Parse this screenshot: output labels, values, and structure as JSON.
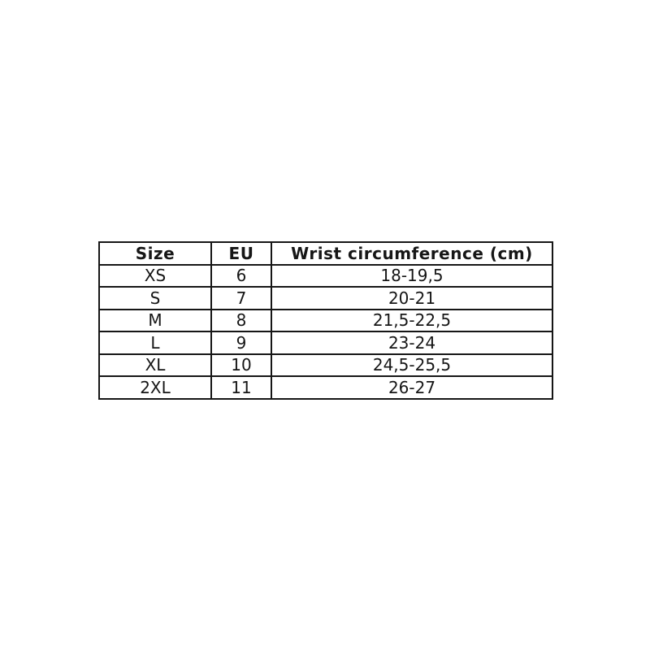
{
  "chart_data": {
    "type": "table",
    "title": "",
    "columns": [
      "Size",
      "EU",
      "Wrist circumference (cm)"
    ],
    "rows": [
      [
        "XS",
        "6",
        "18-19,5"
      ],
      [
        "S",
        "7",
        "20-21"
      ],
      [
        "M",
        "8",
        "21,5-22,5"
      ],
      [
        "L",
        "9",
        "23-24"
      ],
      [
        "XL",
        "10",
        "24,5-25,5"
      ],
      [
        "2XL",
        "11",
        "26-27"
      ]
    ]
  },
  "table": {
    "headers": [
      "Size",
      "EU",
      "Wrist circumference (cm)"
    ],
    "rows": [
      {
        "size": "XS",
        "eu": "6",
        "wrist": "18-19,5"
      },
      {
        "size": "S",
        "eu": "7",
        "wrist": "20-21"
      },
      {
        "size": "M",
        "eu": "8",
        "wrist": "21,5-22,5"
      },
      {
        "size": "L",
        "eu": "9",
        "wrist": "23-24"
      },
      {
        "size": "XL",
        "eu": "10",
        "wrist": "24,5-25,5"
      },
      {
        "size": "2XL",
        "eu": "11",
        "wrist": "26-27"
      }
    ],
    "colors": {
      "text": "#161616",
      "border": "#161616",
      "background": "#ffffff"
    }
  }
}
